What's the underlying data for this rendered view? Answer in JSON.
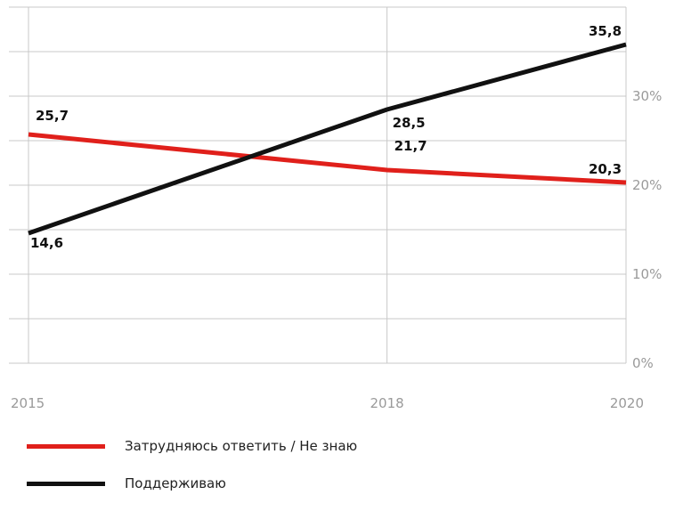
{
  "chart_data": {
    "type": "line",
    "x": [
      2015,
      2018,
      2020
    ],
    "x_tick_labels": [
      "2015",
      "2018",
      "2020"
    ],
    "y_tick_labels": [
      "0%",
      "10%",
      "20%",
      "30%"
    ],
    "ylim": [
      0,
      40
    ],
    "grid": true,
    "legend_position": "bottom-left",
    "series": [
      {
        "name": "Затрудняюсь ответить / Не знаю",
        "color": "#e0201b",
        "values": [
          25.7,
          21.7,
          20.3
        ],
        "labels": [
          "25,7",
          "21,7",
          "20,3"
        ]
      },
      {
        "name": "Поддерживаю",
        "color": "#111111",
        "values": [
          14.6,
          28.5,
          35.8
        ],
        "labels": [
          "14,6",
          "28,5",
          "35,8"
        ]
      }
    ]
  }
}
